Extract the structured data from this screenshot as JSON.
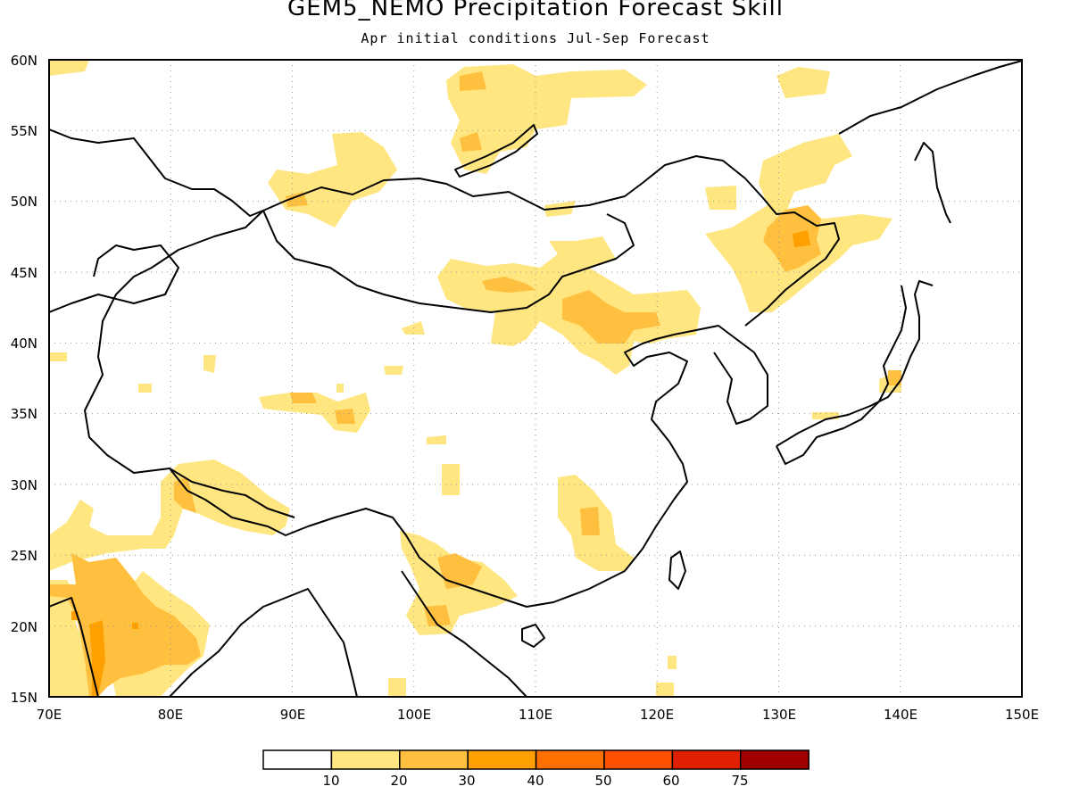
{
  "title": "GEM5_NEMO Precipitation Forecast Skill",
  "subtitle": "Apr initial conditions  Jul-Sep Forecast",
  "map": {
    "lon_range": [
      70,
      150
    ],
    "lat_range": [
      15,
      60
    ],
    "x_ticks": [
      "70E",
      "80E",
      "90E",
      "100E",
      "110E",
      "120E",
      "130E",
      "140E",
      "150E"
    ],
    "y_ticks": [
      "15N",
      "20N",
      "25N",
      "30N",
      "35N",
      "40N",
      "45N",
      "50N",
      "55N",
      "60N"
    ],
    "grid": true
  },
  "colorbar": {
    "labels": [
      "10",
      "20",
      "30",
      "40",
      "50",
      "60",
      "75"
    ],
    "colors": [
      "#ffffff",
      "#ffe680",
      "#ffc040",
      "#ffa000",
      "#ff7000",
      "#ff5000",
      "#e01e00",
      "#a00000"
    ]
  },
  "colors": {
    "skill_10_20": "#ffe680",
    "skill_20_30": "#ffc040",
    "skill_30_40": "#ffa000"
  }
}
